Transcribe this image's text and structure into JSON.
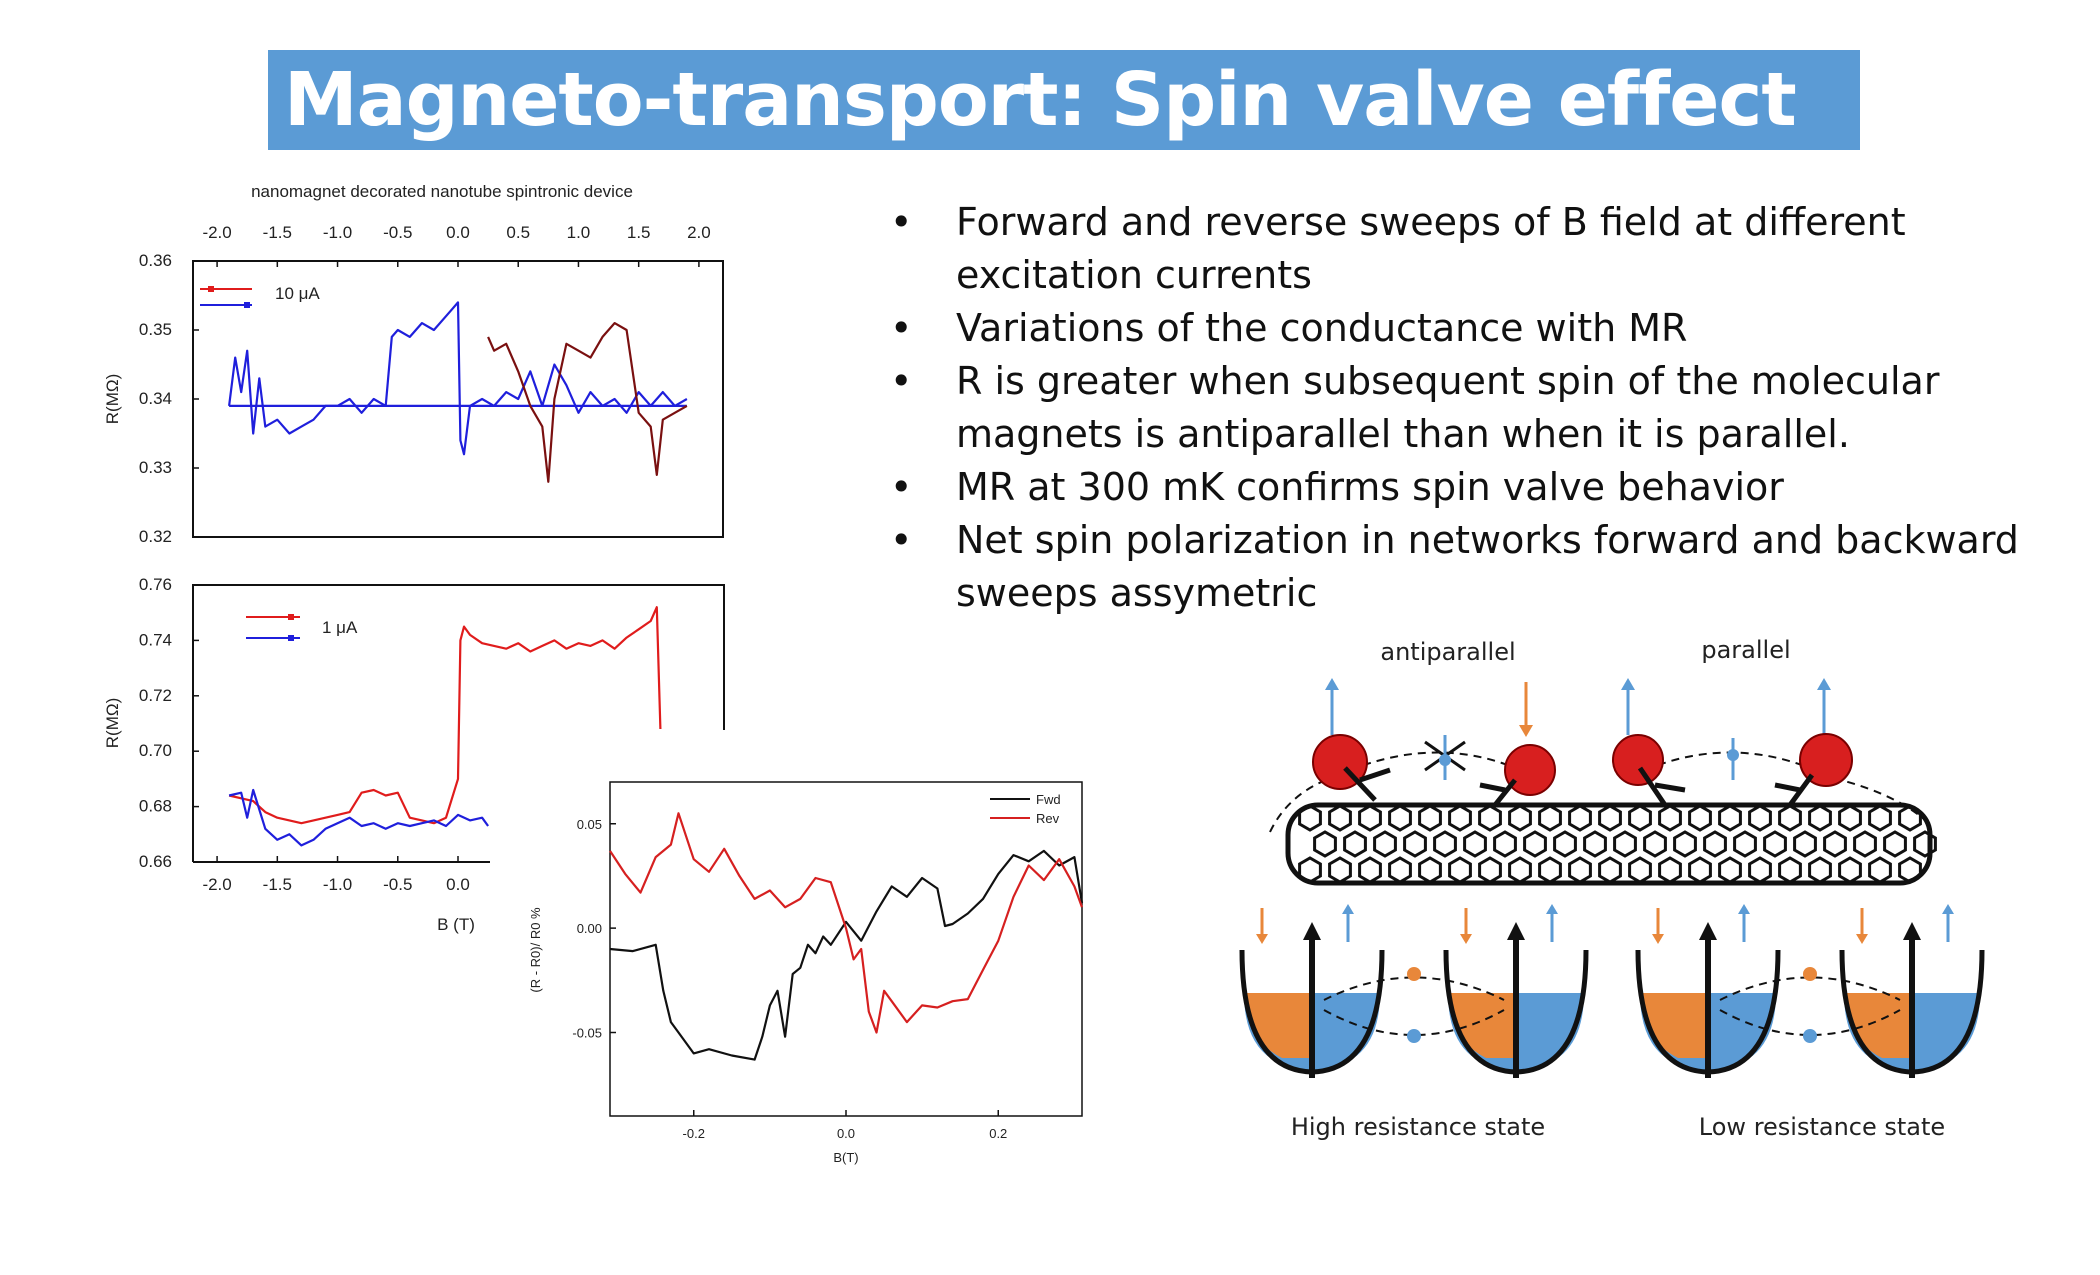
{
  "slide": {
    "title": "Magneto-transport: Spin valve effect",
    "bullets": [
      "Forward and reverse sweeps of B field at different excitation currents",
      "Variations of the conductance with MR",
      "R is greater when subsequent spin of the molecular magnets is antiparallel than when it is parallel.",
      "MR at 300 mK confirms spin valve behavior",
      "Net spin polarization in networks forward and backward sweeps assymetric"
    ],
    "bullet_symbol": "•"
  },
  "figure_left": {
    "title": "nanomagnet decorated nanotube spintronic device",
    "shared_x_label": "B (T)"
  },
  "diagram": {
    "label_antiparallel": "antiparallel",
    "label_parallel": "parallel",
    "caption_high": "High resistance state",
    "caption_low": "Low resistance state",
    "colors": {
      "spin_orange": "#e8873a",
      "spin_blue": "#5b9bd5",
      "magnet_red": "#d81f1f"
    }
  },
  "chart_data": [
    {
      "type": "line",
      "title": "nanomagnet decorated nanotube spintronic device",
      "ylabel": "R(MΩ)",
      "xticks": [
        "-2.0",
        "-1.5",
        "-1.0",
        "-0.5",
        "0.0",
        "0.5",
        "1.0",
        "1.5",
        "2.0"
      ],
      "yticks": [
        "0.36",
        "0.35",
        "0.34",
        "0.33",
        "0.32"
      ],
      "xlim": [
        -2.2,
        2.2
      ],
      "ylim": [
        0.32,
        0.36
      ],
      "legend": "top-left",
      "legend_label": "10 μA",
      "series": [
        {
          "color": "#1f1fdc",
          "x": [
            -1.9,
            -1.85,
            -1.8,
            -1.75,
            -1.7,
            -1.65,
            -1.6,
            -1.5,
            -1.4,
            -1.3,
            -1.2,
            -1.1,
            -1.0,
            -0.9,
            -0.8,
            -0.7,
            -0.6,
            -0.55,
            -0.5,
            -0.4,
            -0.3,
            -0.2,
            -0.1,
            -0.05,
            0.0,
            0.02,
            0.05,
            0.1,
            0.2,
            0.3,
            0.4,
            0.5,
            0.6,
            0.7,
            0.8,
            0.9,
            1.0,
            1.1,
            1.2,
            1.3,
            1.4,
            1.5,
            1.6,
            1.7,
            1.8,
            1.9
          ],
          "y": [
            0.339,
            0.346,
            0.341,
            0.347,
            0.335,
            0.343,
            0.336,
            0.337,
            0.335,
            0.336,
            0.337,
            0.339,
            0.339,
            0.34,
            0.338,
            0.34,
            0.339,
            0.349,
            0.35,
            0.349,
            0.351,
            0.35,
            0.352,
            0.353,
            0.354,
            0.334,
            0.332,
            0.339,
            0.34,
            0.339,
            0.341,
            0.34,
            0.344,
            0.339,
            0.345,
            0.342,
            0.338,
            0.341,
            0.339,
            0.34,
            0.338,
            0.341,
            0.339,
            0.341,
            0.339,
            0.34
          ]
        },
        {
          "color": "#1f1fdc",
          "x": [
            -1.9,
            1.9
          ],
          "y": [
            0.339,
            0.339
          ]
        },
        {
          "color": "#7a1010",
          "x": [
            0.25,
            0.3,
            0.4,
            0.5,
            0.6,
            0.7,
            0.75,
            0.8,
            0.9,
            1.0,
            1.1,
            1.2,
            1.3,
            1.4,
            1.5,
            1.6,
            1.65,
            1.7,
            1.8,
            1.9
          ],
          "y": [
            0.349,
            0.347,
            0.348,
            0.344,
            0.339,
            0.336,
            0.328,
            0.34,
            0.348,
            0.347,
            0.346,
            0.349,
            0.351,
            0.35,
            0.338,
            0.336,
            0.329,
            0.337,
            0.338,
            0.339
          ]
        }
      ]
    },
    {
      "type": "line",
      "ylabel": "R(MΩ)",
      "xlabel": "B (T)",
      "xticks": [
        "-2.0",
        "-1.5",
        "-1.0",
        "-0.5",
        "0.0"
      ],
      "yticks": [
        "0.76",
        "0.74",
        "0.72",
        "0.70",
        "0.68",
        "0.66"
      ],
      "xlim": [
        -2.2,
        2.2
      ],
      "ylim": [
        0.66,
        0.76
      ],
      "legend": "top-left",
      "legend_label": "1 μA",
      "series": [
        {
          "color": "#e01c1c",
          "x": [
            -1.9,
            -1.8,
            -1.7,
            -1.6,
            -1.5,
            -1.4,
            -1.3,
            -1.2,
            -1.1,
            -1.0,
            -0.9,
            -0.8,
            -0.7,
            -0.6,
            -0.5,
            -0.4,
            -0.3,
            -0.2,
            -0.1,
            0.0,
            0.02,
            0.05,
            0.1,
            0.2,
            0.3,
            0.4,
            0.5,
            0.6,
            0.7,
            0.8,
            0.9,
            1.0,
            1.1,
            1.2,
            1.3,
            1.4,
            1.5,
            1.6,
            1.65,
            1.68
          ],
          "y": [
            0.684,
            0.683,
            0.682,
            0.678,
            0.676,
            0.675,
            0.674,
            0.675,
            0.676,
            0.677,
            0.678,
            0.685,
            0.686,
            0.684,
            0.685,
            0.676,
            0.675,
            0.674,
            0.676,
            0.69,
            0.74,
            0.745,
            0.742,
            0.739,
            0.738,
            0.737,
            0.739,
            0.736,
            0.738,
            0.74,
            0.737,
            0.739,
            0.738,
            0.74,
            0.737,
            0.741,
            0.744,
            0.747,
            0.752,
            0.708
          ]
        },
        {
          "color": "#1f1fdc",
          "x": [
            -1.9,
            -1.8,
            -1.75,
            -1.7,
            -1.6,
            -1.5,
            -1.4,
            -1.3,
            -1.2,
            -1.1,
            -1.0,
            -0.9,
            -0.8,
            -0.7,
            -0.6,
            -0.5,
            -0.4,
            -0.3,
            -0.2,
            -0.1,
            0.0,
            0.1,
            0.2,
            0.25
          ],
          "y": [
            0.684,
            0.685,
            0.676,
            0.686,
            0.672,
            0.668,
            0.67,
            0.666,
            0.668,
            0.672,
            0.674,
            0.676,
            0.673,
            0.674,
            0.672,
            0.674,
            0.673,
            0.674,
            0.675,
            0.673,
            0.677,
            0.675,
            0.676,
            0.673
          ]
        }
      ]
    },
    {
      "type": "line",
      "xlabel": "B(T)",
      "ylabel": "(R - R0)/ R0 %",
      "xticks": [
        "-0.2",
        "0.0",
        "0.2"
      ],
      "yticks": [
        "0.05",
        "0.00",
        "-0.05"
      ],
      "xlim": [
        -0.31,
        0.31
      ],
      "ylim": [
        -0.09,
        0.07
      ],
      "legend": "top-right",
      "series": [
        {
          "name": "Fwd",
          "color": "#111111",
          "x": [
            -0.31,
            -0.28,
            -0.25,
            -0.24,
            -0.23,
            -0.22,
            -0.2,
            -0.18,
            -0.15,
            -0.12,
            -0.11,
            -0.1,
            -0.09,
            -0.08,
            -0.07,
            -0.06,
            -0.05,
            -0.04,
            -0.03,
            -0.02,
            0.0,
            0.02,
            0.04,
            0.06,
            0.08,
            0.1,
            0.12,
            0.13,
            0.14,
            0.16,
            0.18,
            0.2,
            0.22,
            0.24,
            0.26,
            0.28,
            0.3,
            0.31
          ],
          "y": [
            -0.01,
            -0.011,
            -0.008,
            -0.03,
            -0.045,
            -0.05,
            -0.06,
            -0.058,
            -0.061,
            -0.063,
            -0.052,
            -0.037,
            -0.03,
            -0.052,
            -0.022,
            -0.019,
            -0.008,
            -0.012,
            -0.004,
            -0.008,
            0.003,
            -0.006,
            0.008,
            0.02,
            0.015,
            0.024,
            0.019,
            0.001,
            0.002,
            0.007,
            0.014,
            0.026,
            0.035,
            0.032,
            0.037,
            0.03,
            0.034,
            0.012
          ]
        },
        {
          "name": "Rev",
          "color": "#d62020",
          "x": [
            -0.31,
            -0.29,
            -0.27,
            -0.25,
            -0.23,
            -0.22,
            -0.2,
            -0.18,
            -0.16,
            -0.14,
            -0.12,
            -0.1,
            -0.08,
            -0.06,
            -0.04,
            -0.02,
            0.0,
            0.01,
            0.02,
            0.03,
            0.04,
            0.05,
            0.06,
            0.08,
            0.1,
            0.12,
            0.14,
            0.16,
            0.18,
            0.2,
            0.22,
            0.24,
            0.26,
            0.28,
            0.3,
            0.31
          ],
          "y": [
            0.037,
            0.026,
            0.017,
            0.034,
            0.04,
            0.055,
            0.033,
            0.027,
            0.038,
            0.025,
            0.014,
            0.018,
            0.01,
            0.014,
            0.024,
            0.022,
            0.0,
            -0.015,
            -0.01,
            -0.04,
            -0.05,
            -0.03,
            -0.035,
            -0.045,
            -0.037,
            -0.038,
            -0.035,
            -0.034,
            -0.02,
            -0.006,
            0.015,
            0.03,
            0.023,
            0.033,
            0.02,
            0.01
          ]
        }
      ]
    }
  ]
}
